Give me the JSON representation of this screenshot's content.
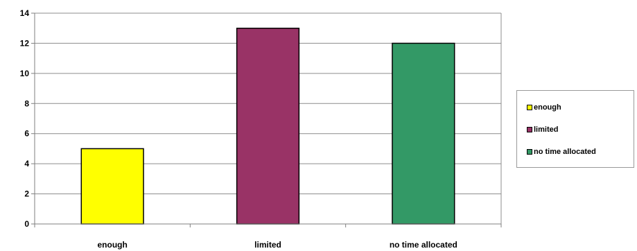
{
  "chart_data": {
    "type": "bar",
    "title": "",
    "xlabel": "",
    "ylabel": "",
    "categories": [
      "enough",
      "limited",
      "no time allocated"
    ],
    "values": [
      5,
      13,
      12
    ],
    "colors": [
      "#FFFF00",
      "#993366",
      "#339966"
    ],
    "ylim": [
      0,
      14
    ],
    "yticks": [
      "0",
      "2",
      "4",
      "6",
      "8",
      "10",
      "12",
      "14"
    ],
    "grid": true,
    "legend": {
      "placement": "right",
      "entries": [
        "enough",
        "limited",
        "no time allocated"
      ]
    }
  }
}
